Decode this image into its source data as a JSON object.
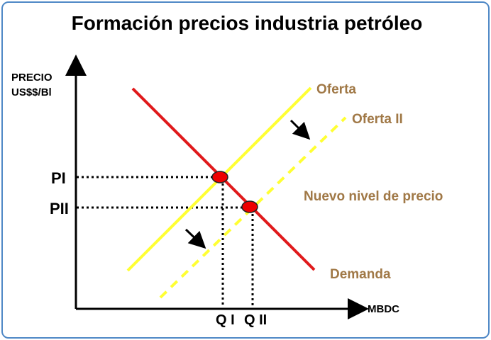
{
  "title": "Formación precios industria petróleo",
  "y_axis_label": [
    "PRECIO",
    "US$$/Bl"
  ],
  "x_axis_label": "MBDC",
  "price_levels": {
    "p1": "PI",
    "p2": "PII"
  },
  "quantity_levels": {
    "q1": "Q I",
    "q2": "Q II"
  },
  "curves": {
    "supply": "Oferta",
    "supply2": "Oferta II",
    "demand": "Demanda"
  },
  "annotation": "Nuevo nivel de precio",
  "colors": {
    "demand": "#e0191b",
    "supply": "#ffff33",
    "equilibrium": "#ee0000",
    "curve_label": "#a07846",
    "frame": "#4f88c6"
  },
  "icons": [
    "shift-arrow-icon",
    "equilibrium-point-icon"
  ]
}
